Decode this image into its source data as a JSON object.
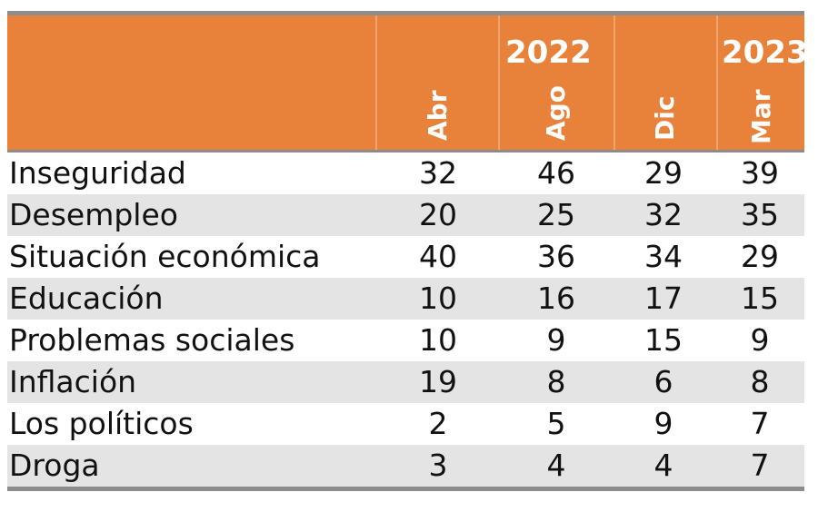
{
  "chart_data": {
    "type": "table",
    "years": [
      {
        "label": "2022",
        "months": [
          "Abr",
          "Ago",
          "Dic"
        ]
      },
      {
        "label": "2023",
        "months": [
          "Mar"
        ]
      }
    ],
    "columns": [
      "Abr",
      "Ago",
      "Dic",
      "Mar"
    ],
    "rows": [
      {
        "label": "Inseguridad",
        "values": [
          32,
          46,
          29,
          39
        ]
      },
      {
        "label": "Desempleo",
        "values": [
          20,
          25,
          32,
          35
        ]
      },
      {
        "label": "Situación económica",
        "values": [
          40,
          36,
          34,
          29
        ]
      },
      {
        "label": "Educación",
        "values": [
          10,
          16,
          17,
          15
        ]
      },
      {
        "label": "Problemas sociales",
        "values": [
          10,
          9,
          15,
          9
        ]
      },
      {
        "label": "Inflación",
        "values": [
          19,
          8,
          6,
          8
        ]
      },
      {
        "label": "Los políticos",
        "values": [
          2,
          5,
          9,
          7
        ]
      },
      {
        "label": "Droga",
        "values": [
          3,
          4,
          4,
          7
        ]
      }
    ]
  },
  "colors": {
    "header_bg": "#e8813a",
    "header_text": "#ffffff",
    "alt_row": "#e4e4e4",
    "rule": "#8c8c8c"
  }
}
